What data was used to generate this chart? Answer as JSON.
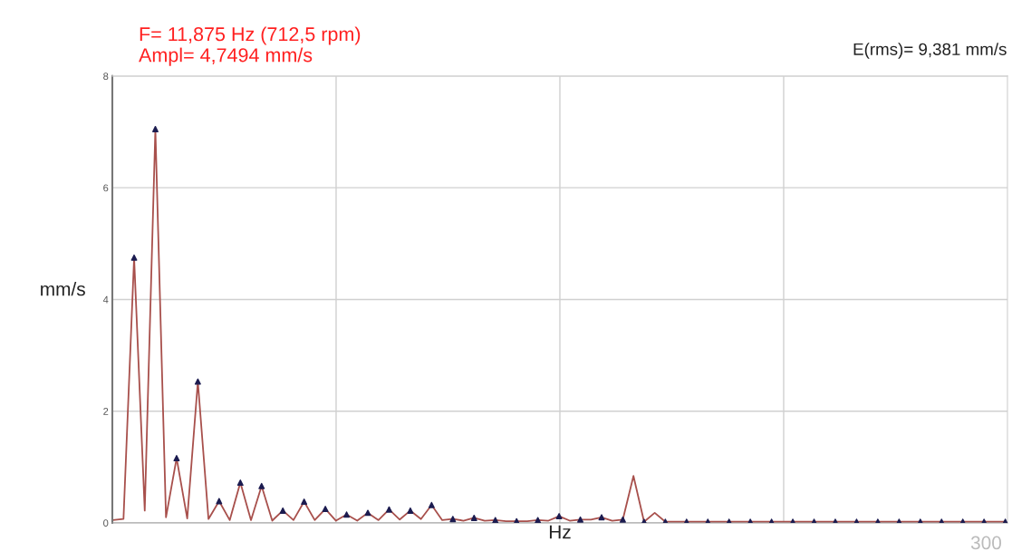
{
  "chart_data": {
    "type": "line",
    "title": "F= 11,875 Hz (712,5 rpm)",
    "subtitle": "Ampl= 4,7494 mm/s",
    "xlabel": "Hz",
    "ylabel": "mm/s",
    "annotations": [
      "E(rms)= 9,381 mm/s",
      "300"
    ],
    "categories": [
      null,
      null,
      null,
      null,
      null,
      null,
      null,
      null,
      null,
      null,
      null,
      null,
      null,
      null,
      null,
      null,
      null,
      null,
      null,
      null,
      null,
      null,
      null,
      null,
      null,
      null,
      null,
      null,
      null,
      null,
      null,
      null,
      null,
      null,
      null,
      null,
      null,
      null,
      null,
      null,
      null,
      null,
      null,
      null,
      null,
      null,
      null,
      null,
      null,
      null,
      null,
      null,
      null,
      null,
      null,
      null,
      null,
      null,
      null,
      null,
      null,
      null,
      null,
      null,
      null,
      null,
      null,
      null,
      null,
      null,
      null,
      null,
      null,
      null,
      null,
      null,
      null,
      null,
      null,
      null,
      null,
      null,
      null,
      null,
      null
    ],
    "ylim": [
      0,
      8
    ],
    "yticks": [
      0,
      2,
      4,
      6,
      8
    ],
    "grid": true,
    "series": [
      {
        "color": "#a8504c",
        "marker": "none",
        "line_style": "solid",
        "values": [
          0.05,
          0.07,
          4.75,
          0.22,
          7.05,
          0.1,
          1.16,
          0.08,
          2.53,
          0.07,
          0.39,
          0.05,
          0.72,
          0.05,
          0.66,
          0.04,
          0.22,
          0.05,
          0.38,
          0.05,
          0.25,
          0.04,
          0.15,
          0.04,
          0.18,
          0.05,
          0.24,
          0.06,
          0.22,
          0.07,
          0.32,
          0.05,
          0.07,
          0.04,
          0.09,
          0.04,
          0.05,
          0.03,
          0.03,
          0.03,
          0.05,
          0.04,
          0.12,
          0.04,
          0.06,
          0.06,
          0.1,
          0.04,
          0.06,
          0.84,
          0.02,
          0.18,
          0.02,
          0.02,
          0.02,
          0.02,
          0.02,
          0.02,
          0.02,
          0.02,
          0.02,
          0.02,
          0.02,
          0.02,
          0.02,
          0.02,
          0.02,
          0.02,
          0.02,
          0.02,
          0.02,
          0.02,
          0.02,
          0.02,
          0.02,
          0.02,
          0.02,
          0.02,
          0.02,
          0.02,
          0.02,
          0.02,
          0.02,
          0.02,
          0.02
        ]
      },
      {
        "type": "scatter",
        "color": "#1c1c50",
        "marker": "triangle",
        "values": [
          null,
          null,
          4.75,
          null,
          7.05,
          null,
          1.16,
          null,
          2.53,
          null,
          0.39,
          null,
          0.72,
          null,
          0.66,
          null,
          0.22,
          null,
          0.38,
          null,
          0.25,
          null,
          0.15,
          null,
          0.18,
          null,
          0.24,
          null,
          0.22,
          null,
          0.32,
          null,
          0.07,
          null,
          0.09,
          null,
          0.05,
          null,
          0.03,
          null,
          0.05,
          null,
          0.12,
          null,
          0.06,
          null,
          0.1,
          null,
          0.06,
          null,
          0.02,
          null,
          0.02,
          null,
          0.02,
          null,
          0.02,
          null,
          0.02,
          null,
          0.02,
          null,
          0.02,
          null,
          0.02,
          null,
          0.02,
          null,
          0.02,
          null,
          0.02,
          null,
          0.02,
          null,
          0.02,
          null,
          0.02,
          null,
          0.02,
          null,
          0.02,
          null,
          0.02,
          null,
          0.02
        ]
      }
    ]
  }
}
